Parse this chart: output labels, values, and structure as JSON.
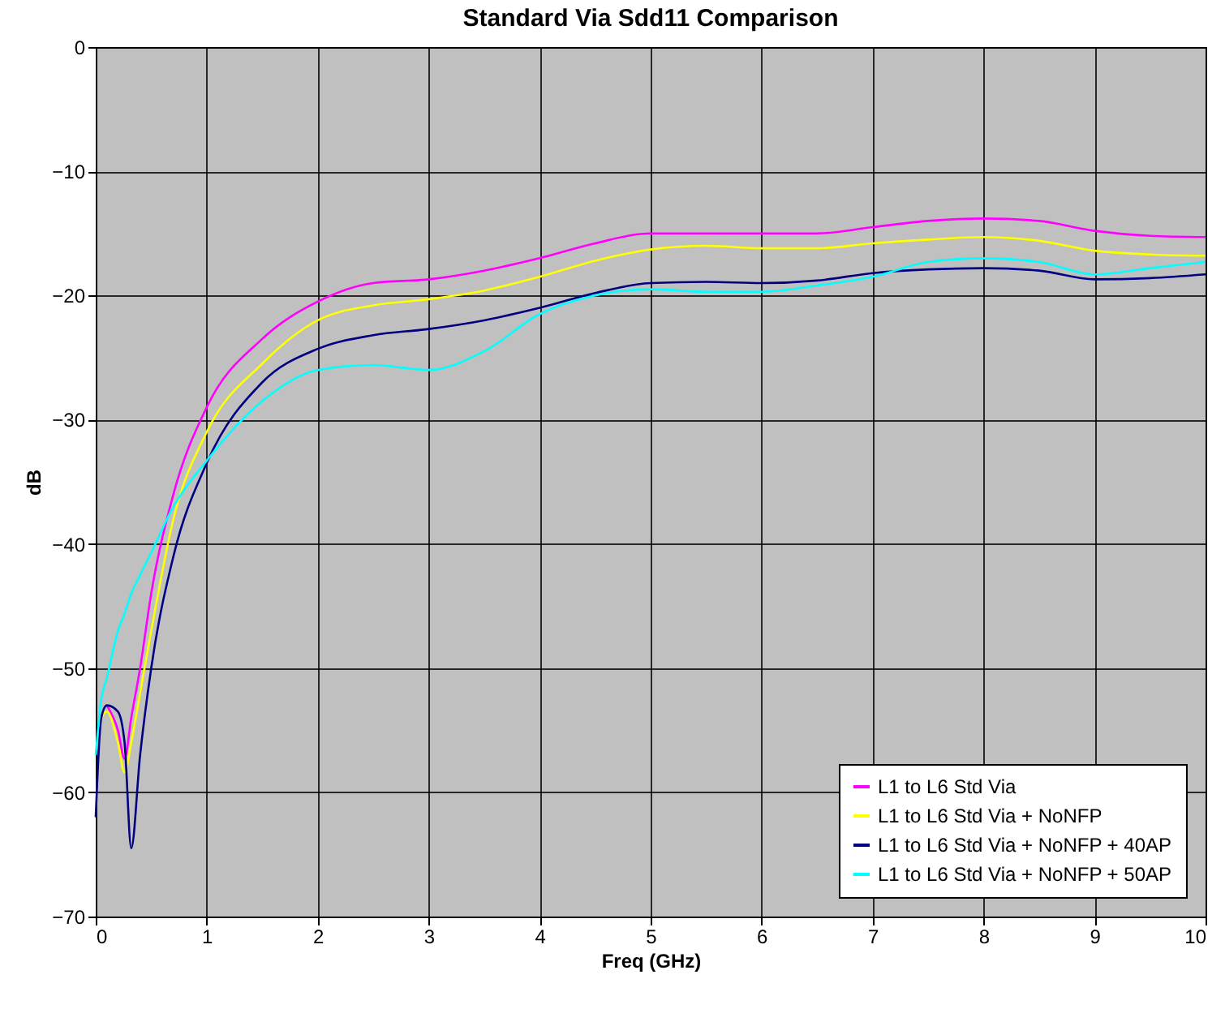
{
  "chart_data": {
    "type": "line",
    "title": "Standard Via Sdd11 Comparison",
    "xlabel": "Freq (GHz)",
    "ylabel": "dB",
    "xlim": [
      0,
      10
    ],
    "xticks": [
      0,
      1,
      2,
      3,
      4,
      5,
      6,
      7,
      8,
      9,
      10
    ],
    "ylim": [
      -70,
      0
    ],
    "yticks": [
      -70,
      -60,
      -50,
      -40,
      -30,
      -20,
      -10,
      0
    ],
    "grid": true,
    "legend": "bottom right",
    "marker": "none",
    "line_style": "solid",
    "x": [
      0,
      0.05,
      0.1,
      0.2,
      0.26,
      0.32,
      0.4,
      0.5,
      0.7,
      1,
      1.5,
      2,
      2.5,
      3,
      3.5,
      4,
      4.5,
      5,
      5.5,
      6,
      6.5,
      7,
      7.5,
      8,
      8.5,
      9,
      9.5,
      10
    ],
    "series": [
      {
        "name": "L1 to L6 Std Via",
        "color": "#ff00ff",
        "values": [
          null,
          null,
          -53,
          -55,
          -57.3,
          -54,
          -50,
          -44,
          -36,
          -29,
          -23.5,
          -20.5,
          -19,
          -18.7,
          -18,
          -17,
          -15.8,
          -15,
          -15,
          -15,
          -15,
          -14.5,
          -14,
          -13.8,
          -14,
          -14.8,
          -15.2,
          -15.3
        ]
      },
      {
        "name": "L1 to L6 Std Via + NoNFP",
        "color": "#ffff00",
        "values": [
          null,
          -54,
          -53.5,
          -56,
          -58.4,
          -56,
          -52,
          -47,
          -38,
          -31,
          -25.5,
          -22,
          -20.8,
          -20.3,
          -19.6,
          -18.5,
          -17.2,
          -16.3,
          -16,
          -16.2,
          -16.2,
          -15.8,
          -15.5,
          -15.3,
          -15.6,
          -16.4,
          -16.7,
          -16.8
        ]
      },
      {
        "name": "L1 to L6 Std Via + NoNFP + 40AP",
        "color": "#000080",
        "values": [
          -62,
          -54,
          -53,
          -53.5,
          -56,
          -64.5,
          -57,
          -50,
          -41,
          -33.5,
          -27,
          -24.3,
          -23.2,
          -22.7,
          -22,
          -21,
          -19.8,
          -19,
          -18.9,
          -19,
          -18.8,
          -18.2,
          -17.9,
          -17.8,
          -18,
          -18.7,
          -18.6,
          -18.3
        ]
      },
      {
        "name": "L1 to L6 Std Via + NoNFP + 50AP",
        "color": "#00ffff",
        "values": [
          -57,
          -52.5,
          -50.8,
          -47,
          -45.6,
          -44,
          -42.5,
          -40.7,
          -37,
          -33.3,
          -28.5,
          -26,
          -25.6,
          -26,
          -24.5,
          -21.5,
          -20,
          -19.5,
          -19.7,
          -19.7,
          -19.2,
          -18.5,
          -17.3,
          -17,
          -17.3,
          -18.3,
          -17.8,
          -17.3
        ]
      }
    ]
  }
}
